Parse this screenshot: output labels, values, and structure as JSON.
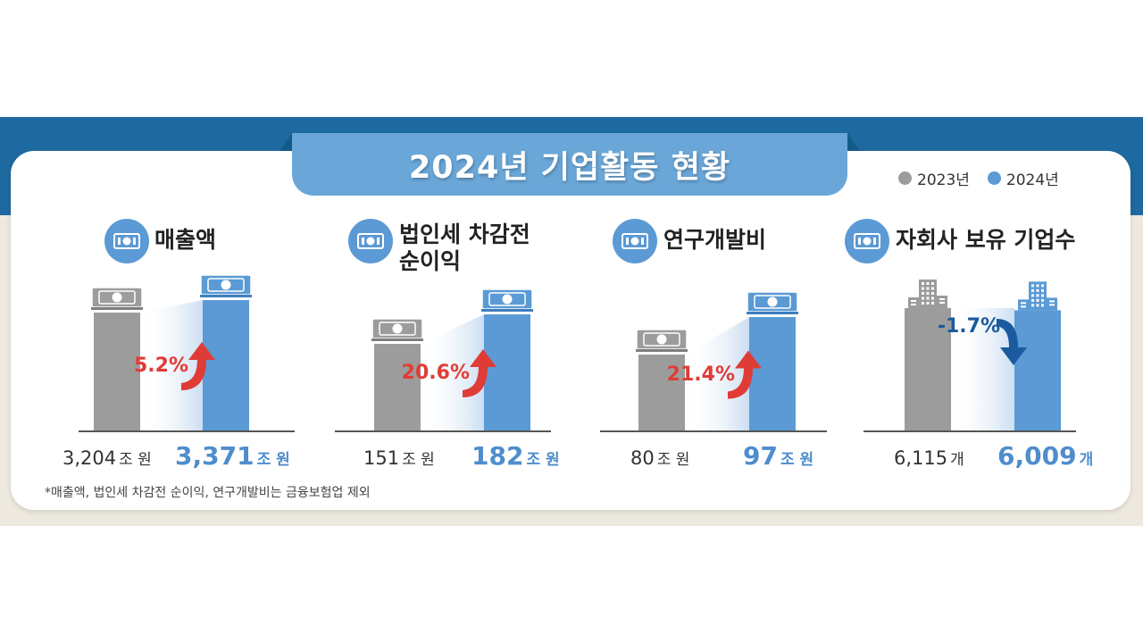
{
  "title": "2024년 기업활동 현황",
  "legend": [
    {
      "label": "2023년",
      "color": "#9c9c9c"
    },
    {
      "label": "2024년",
      "color": "#5b9ad4"
    }
  ],
  "chart_data": [
    {
      "type": "bar",
      "title": "매출액",
      "categories": [
        "2023년",
        "2024년"
      ],
      "values": [
        3204,
        3371
      ],
      "unit": "조 원",
      "labels": [
        "3,204",
        "3,371"
      ],
      "change": "5.2%",
      "direction": "up",
      "icon": "money-icon"
    },
    {
      "type": "bar",
      "title": "법인세 차감전 순이익",
      "title_lines": [
        "법인세 차감전",
        "순이익"
      ],
      "categories": [
        "2023년",
        "2024년"
      ],
      "values": [
        151,
        182
      ],
      "unit": "조 원",
      "labels": [
        "151",
        "182"
      ],
      "change": "20.6%",
      "direction": "up",
      "icon": "money-icon"
    },
    {
      "type": "bar",
      "title": "연구개발비",
      "categories": [
        "2023년",
        "2024년"
      ],
      "values": [
        80,
        97
      ],
      "unit": "조 원",
      "labels": [
        "80",
        "97"
      ],
      "change": "21.4%",
      "direction": "up",
      "icon": "money-gear-icon"
    },
    {
      "type": "bar",
      "title": "자회사 보유 기업수",
      "categories": [
        "2023년",
        "2024년"
      ],
      "values": [
        6115,
        6009
      ],
      "unit": "개",
      "labels": [
        "6,115",
        "6,009"
      ],
      "change": "-1.7%",
      "direction": "down",
      "icon": "people-gear-icon"
    }
  ],
  "footnote": "*매출액, 법인세 차감전 순이익, 연구개발비는 금융보험업 제외"
}
